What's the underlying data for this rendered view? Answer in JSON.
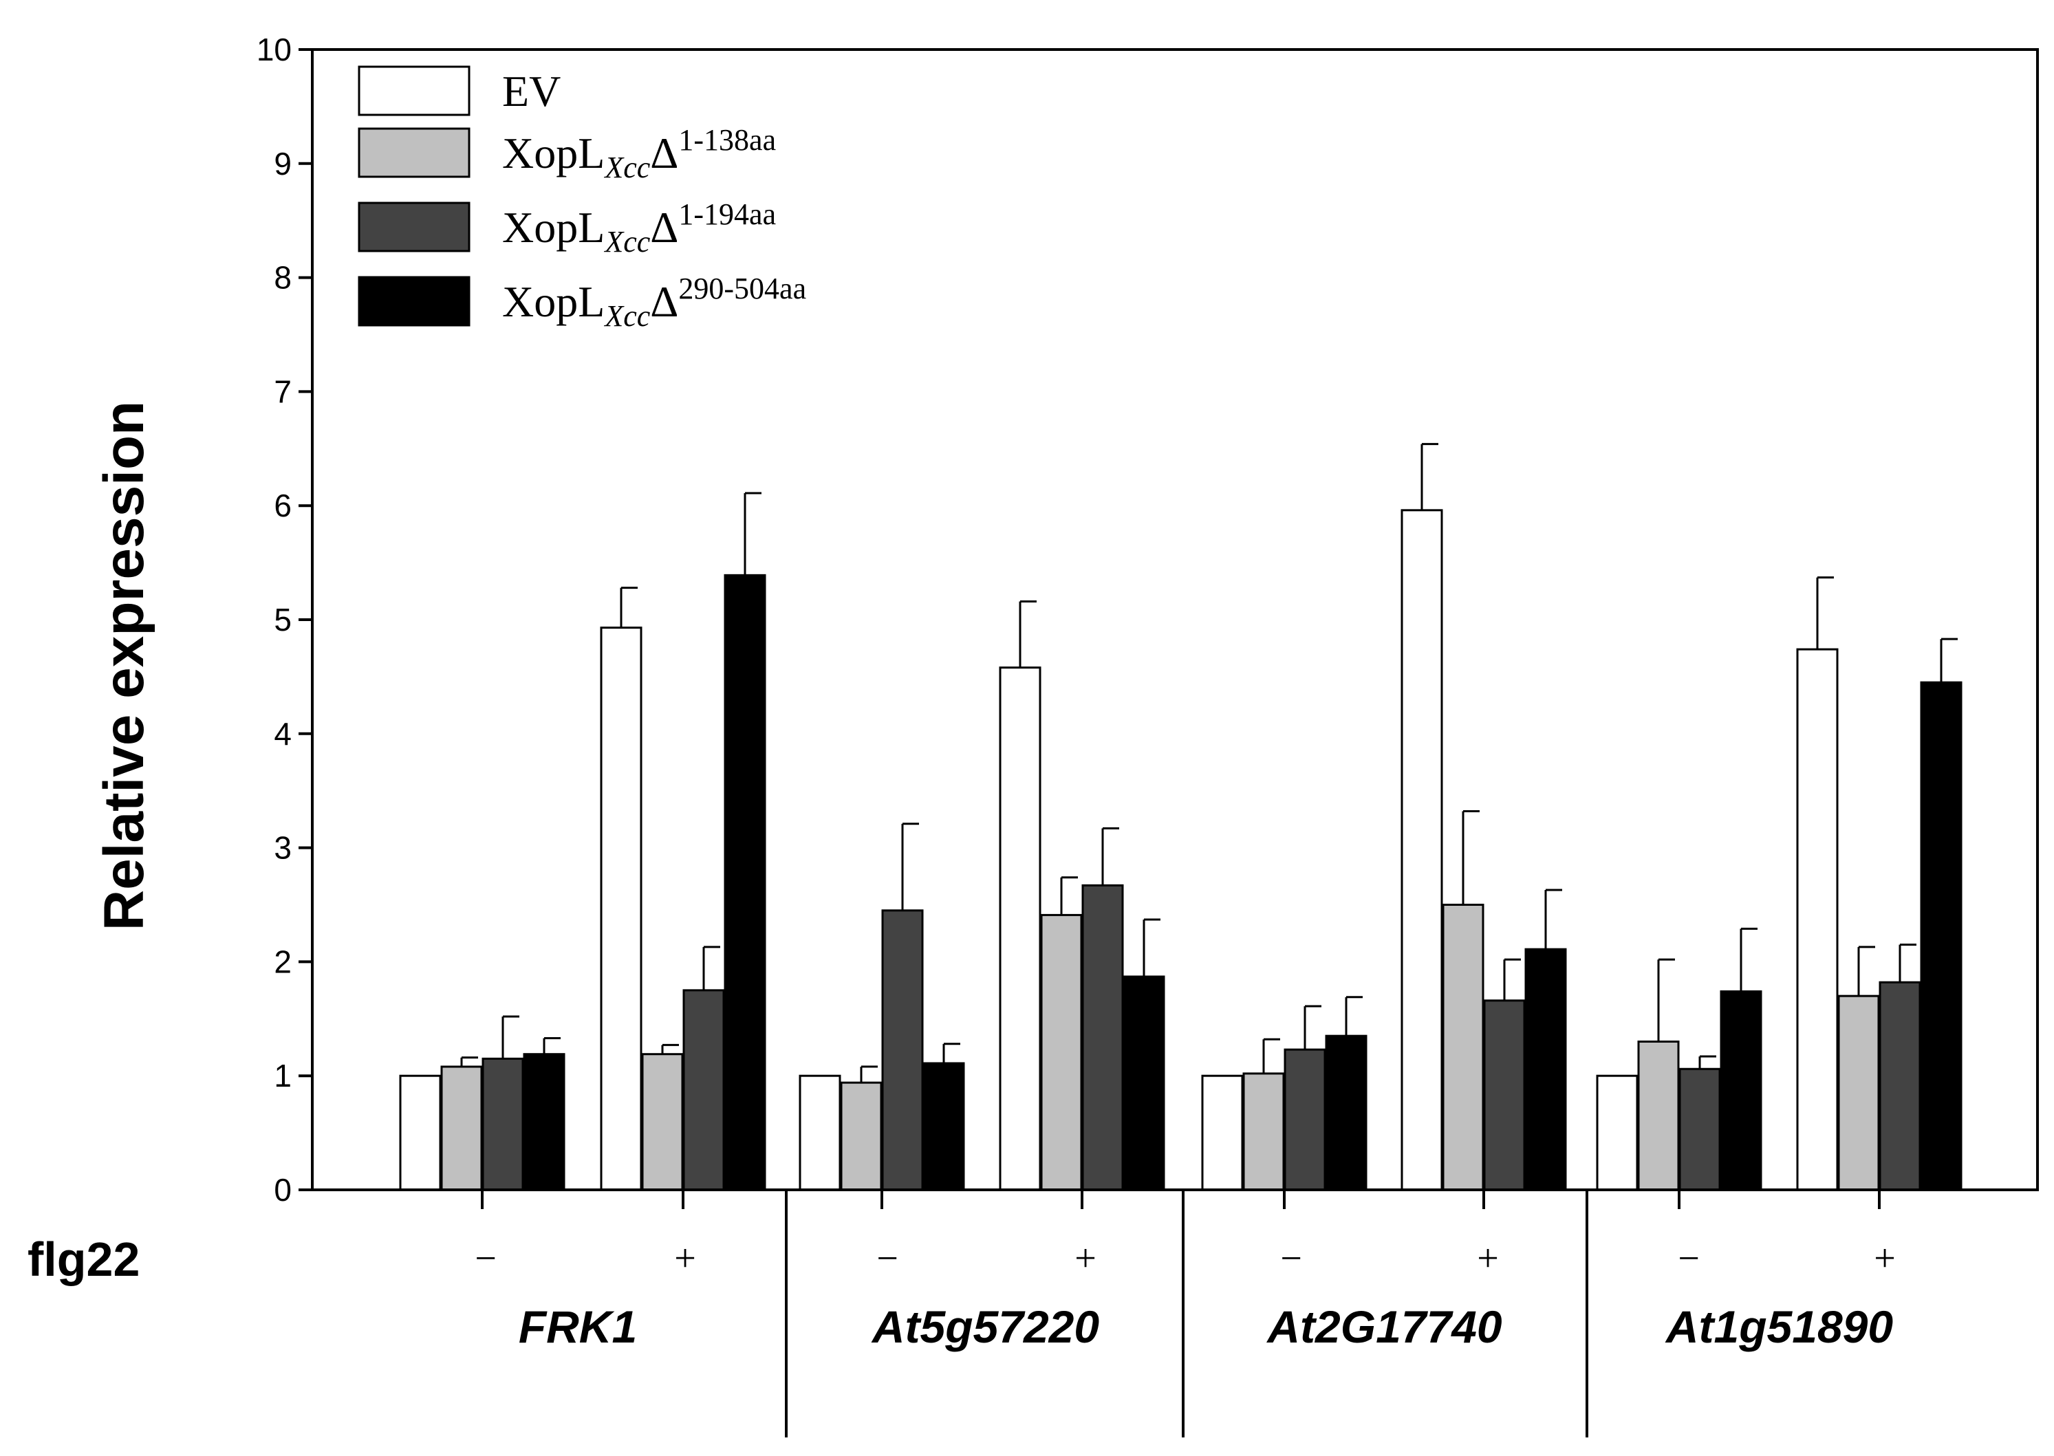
{
  "chart_data": {
    "type": "bar",
    "title": "",
    "ylabel": "Relative expression",
    "xlabel": "flg22",
    "ylim": [
      0,
      10
    ],
    "yticks": [
      0,
      1,
      2,
      3,
      4,
      5,
      6,
      7,
      8,
      9,
      10
    ],
    "genes": [
      "FRK1",
      "At5g57220",
      "At2G17740",
      "At1g51890"
    ],
    "treatments": [
      "−",
      "+"
    ],
    "categories": [
      "FRK1 −",
      "FRK1 +",
      "At5g57220 −",
      "At5g57220 +",
      "At2G17740 −",
      "At2G17740 +",
      "At1g51890 −",
      "At1g51890 +"
    ],
    "series": [
      {
        "name": "EV",
        "legend": {
          "main": "EV",
          "sub": "",
          "sup": ""
        },
        "color": "#ffffff",
        "values": [
          1.0,
          4.93,
          1.0,
          4.58,
          1.0,
          5.96,
          1.0,
          4.74
        ],
        "errors": [
          0.0,
          0.35,
          0.0,
          0.58,
          0.0,
          0.58,
          0.0,
          0.63
        ]
      },
      {
        "name": "XopLXccΔ 1-138aa",
        "legend": {
          "main": "XopL",
          "sub": "Xcc",
          "sup": "1-138aa"
        },
        "color": "#c0c0c0",
        "values": [
          1.08,
          1.19,
          0.94,
          2.41,
          1.02,
          2.5,
          1.3,
          1.7
        ],
        "errors": [
          0.08,
          0.08,
          0.14,
          0.33,
          0.3,
          0.82,
          0.72,
          0.43
        ]
      },
      {
        "name": "XopLXccΔ 1-194aa",
        "legend": {
          "main": "XopL",
          "sub": "Xcc",
          "sup": "1-194aa"
        },
        "color": "#434343",
        "values": [
          1.15,
          1.75,
          2.45,
          2.67,
          1.23,
          1.66,
          1.06,
          1.82
        ],
        "errors": [
          0.37,
          0.38,
          0.76,
          0.5,
          0.38,
          0.36,
          0.11,
          0.33
        ]
      },
      {
        "name": "XopLXccΔ 290-504aa",
        "legend": {
          "main": "XopL",
          "sub": "Xcc",
          "sup": "290-504aa"
        },
        "color": "#000000",
        "values": [
          1.19,
          5.39,
          1.11,
          1.87,
          1.35,
          2.11,
          1.74,
          4.45
        ],
        "errors": [
          0.14,
          0.72,
          0.17,
          0.5,
          0.34,
          0.52,
          0.55,
          0.38
        ]
      }
    ],
    "legend_symbol": "Δ",
    "legend_position": "top-left",
    "grid": false
  }
}
